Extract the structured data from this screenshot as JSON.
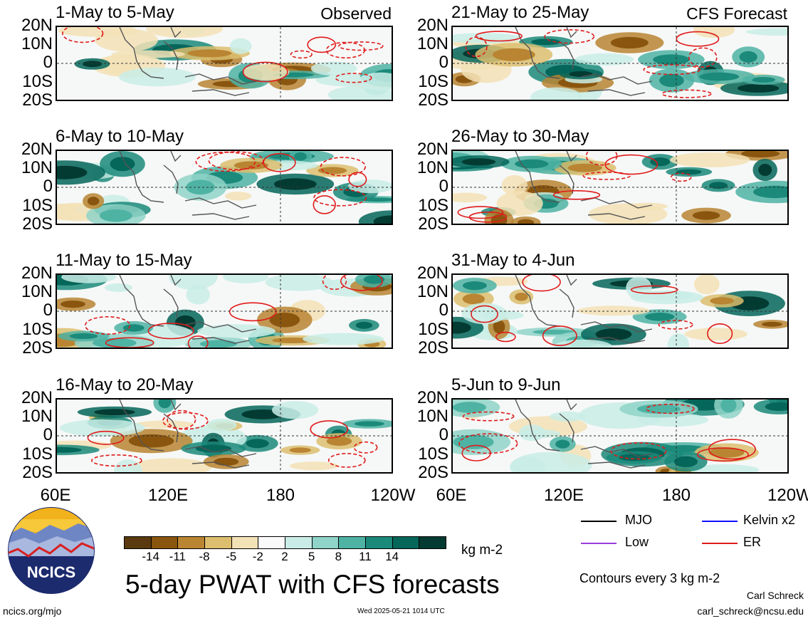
{
  "panels_left": [
    {
      "title": "1-May to 5-May",
      "label": "Observed"
    },
    {
      "title": "6-May to 10-May",
      "label": ""
    },
    {
      "title": "11-May to 15-May",
      "label": ""
    },
    {
      "title": "16-May to 20-May",
      "label": ""
    }
  ],
  "panels_right": [
    {
      "title": "21-May to 25-May",
      "label": "CFS Forecast"
    },
    {
      "title": "26-May to 30-May",
      "label": ""
    },
    {
      "title": "31-May to 4-Jun",
      "label": ""
    },
    {
      "title": "5-Jun to 9-Jun",
      "label": ""
    }
  ],
  "lat_labels": [
    "20N",
    "10N",
    "0",
    "10S",
    "20S"
  ],
  "lon_labels": [
    "60E",
    "120E",
    "180",
    "120W"
  ],
  "colorbar": {
    "colors": [
      "#5a3a0e",
      "#8a560f",
      "#b98532",
      "#dcbe6e",
      "#f3e2b6",
      "#fafafa",
      "#c9ede6",
      "#8fd4c8",
      "#4fb3a4",
      "#1b8a7a",
      "#05665a",
      "#033b32"
    ],
    "ticks": [
      "-14",
      "-11",
      "-8",
      "-5",
      "-2",
      "2",
      "5",
      "8",
      "11",
      "14"
    ],
    "units": "kg m-2"
  },
  "legend": [
    {
      "label": "MJO",
      "color": "#000000"
    },
    {
      "label": "Kelvin x2",
      "color": "#1010ff"
    },
    {
      "label": "Low",
      "color": "#9b3be0"
    },
    {
      "label": "ER",
      "color": "#e01b1b"
    }
  ],
  "contours_note": "Contours every 3 kg m-2",
  "main_title": "5-day PWAT with CFS forecasts",
  "logo_text": "NCICS",
  "url": "ncics.org/mjo",
  "timestamp": "Wed 2025-05-21 1014 UTC",
  "author": "Carl Schreck",
  "email": "carl_schreck@ncsu.edu"
}
